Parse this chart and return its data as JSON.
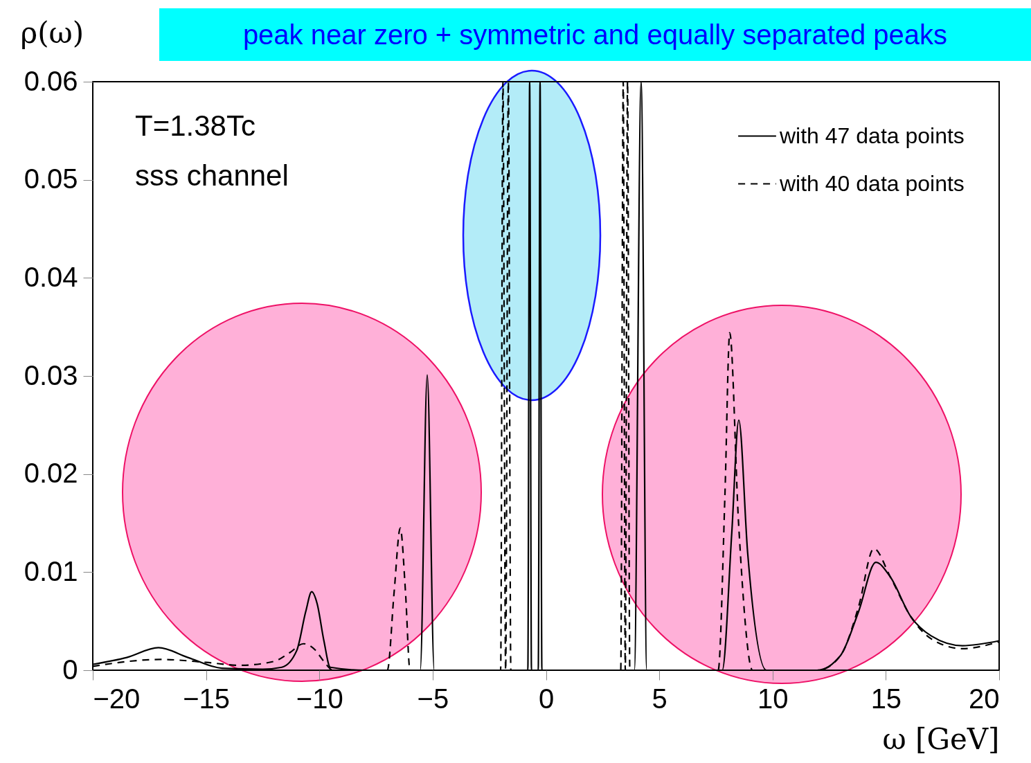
{
  "chart_data": {
    "type": "line",
    "title": "peak near zero + symmetric and equally separated peaks",
    "xlabel": "ω [GeV]",
    "ylabel": "ρ(ω)",
    "annotations": [
      "T=1.38Tc",
      "sss channel"
    ],
    "xlim": [
      -20,
      20
    ],
    "ylim": [
      0,
      0.06
    ],
    "xticks": [
      -20,
      -15,
      -10,
      -5,
      0,
      5,
      10,
      15,
      20
    ],
    "yticks": [
      0,
      0.01,
      0.02,
      0.03,
      0.04,
      0.05,
      0.06
    ],
    "grid": false,
    "legend": "top right",
    "marker": "none",
    "series": [
      {
        "name": "with 47 data points",
        "color": "#000000",
        "line_style": "solid",
        "x": [
          -20,
          -18.5,
          -17.1,
          -15.8,
          -14.3,
          -12.5,
          -11.66,
          -11,
          -10.6,
          -10.34,
          -10.1,
          -9.8,
          -9.52,
          -8,
          -5.55,
          -5.24,
          -4.93,
          -2,
          -0.8,
          -0.72,
          -0.64,
          -0.34,
          -0.26,
          -0.18,
          3.9,
          4.2,
          4.45,
          7.78,
          8.2,
          8.51,
          8.9,
          9.73,
          11.96,
          13,
          13.8,
          14.56,
          15.2,
          16.09,
          17,
          18.38,
          20
        ],
        "values": [
          0.0006,
          0.0013,
          0.0023,
          0.0013,
          0.0002,
          0.0001,
          0.0003,
          0.002,
          0.006,
          0.008,
          0.0068,
          0.003,
          0.0003,
          0,
          0,
          0.0301,
          0,
          0,
          0,
          0.06,
          0,
          0,
          0.06,
          0,
          0,
          0.06,
          0,
          0,
          0.014,
          0.0255,
          0.012,
          0,
          0,
          0.0015,
          0.006,
          0.011,
          0.0095,
          0.0055,
          0.0035,
          0.0025,
          0.003
        ]
      },
      {
        "name": "with 40 data points",
        "color": "#000000",
        "line_style": "dashed",
        "x": [
          -20,
          -17,
          -15,
          -13.5,
          -12,
          -11.3,
          -10.7,
          -10.2,
          -9.8,
          -9.4,
          -7.0,
          -6.7,
          -6.43,
          -6.2,
          -6.0,
          -2.0,
          -1.9,
          -1.78,
          -1.66,
          -1.55,
          3.3,
          3.41,
          3.5,
          3.6,
          3.7,
          7.6,
          7.9,
          8.11,
          8.5,
          9.12,
          12,
          13,
          13.8,
          14.47,
          15.2,
          16.09,
          17,
          18.38,
          20
        ],
        "values": [
          0.0004,
          0.0011,
          0.0008,
          0.0005,
          0.0009,
          0.0018,
          0.0027,
          0.0021,
          0.0009,
          0,
          0,
          0.008,
          0.0145,
          0.008,
          0,
          0,
          0.06,
          0,
          0.06,
          0,
          0,
          0.06,
          0,
          0.06,
          0,
          0,
          0.018,
          0.0344,
          0.015,
          0,
          0,
          0.0015,
          0.0065,
          0.0124,
          0.0095,
          0.0055,
          0.0032,
          0.0022,
          0.0029
        ]
      }
    ]
  }
}
